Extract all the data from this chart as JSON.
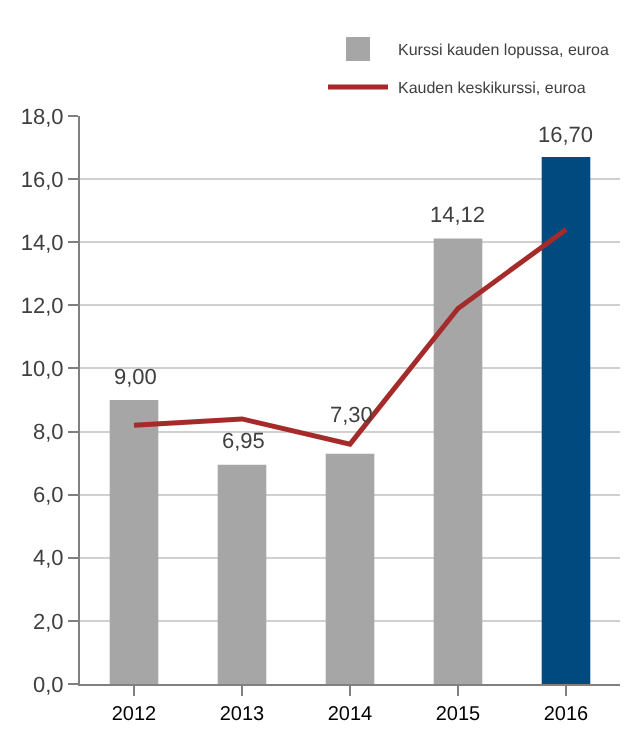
{
  "chart_data": {
    "type": "bar",
    "categories": [
      "2012",
      "2013",
      "2014",
      "2015",
      "2016"
    ],
    "series": [
      {
        "name": "Kurssi kauden lopussa, euroa",
        "color": "#a6a6a6",
        "colors": [
          "#a6a6a6",
          "#a6a6a6",
          "#a6a6a6",
          "#a6a6a6",
          "#004a7f"
        ],
        "values": [
          9.0,
          6.95,
          7.3,
          14.12,
          16.7
        ],
        "value_labels": [
          "9,00",
          "6,95",
          "7,30",
          "14,12",
          "16,70"
        ]
      },
      {
        "name": "Kauden keskikurssi, euroa",
        "type": "line",
        "color": "#a52a2a",
        "values": [
          8.2,
          8.4,
          7.6,
          11.9,
          14.4
        ],
        "marker": "none",
        "line_style": "solid"
      }
    ],
    "ylim": [
      0,
      18
    ],
    "yticks": [
      {
        "value": 0,
        "label": "0,0"
      },
      {
        "value": 2,
        "label": "2,0"
      },
      {
        "value": 4,
        "label": "4,0"
      },
      {
        "value": 6,
        "label": "6,0"
      },
      {
        "value": 8,
        "label": "8,0"
      },
      {
        "value": 10,
        "label": "10,0"
      },
      {
        "value": 12,
        "label": "12,0"
      },
      {
        "value": 14,
        "label": "14,0"
      },
      {
        "value": 16,
        "label": "16,0"
      },
      {
        "value": 18,
        "label": "18,0"
      }
    ],
    "grid": "y",
    "legend": "top right"
  }
}
